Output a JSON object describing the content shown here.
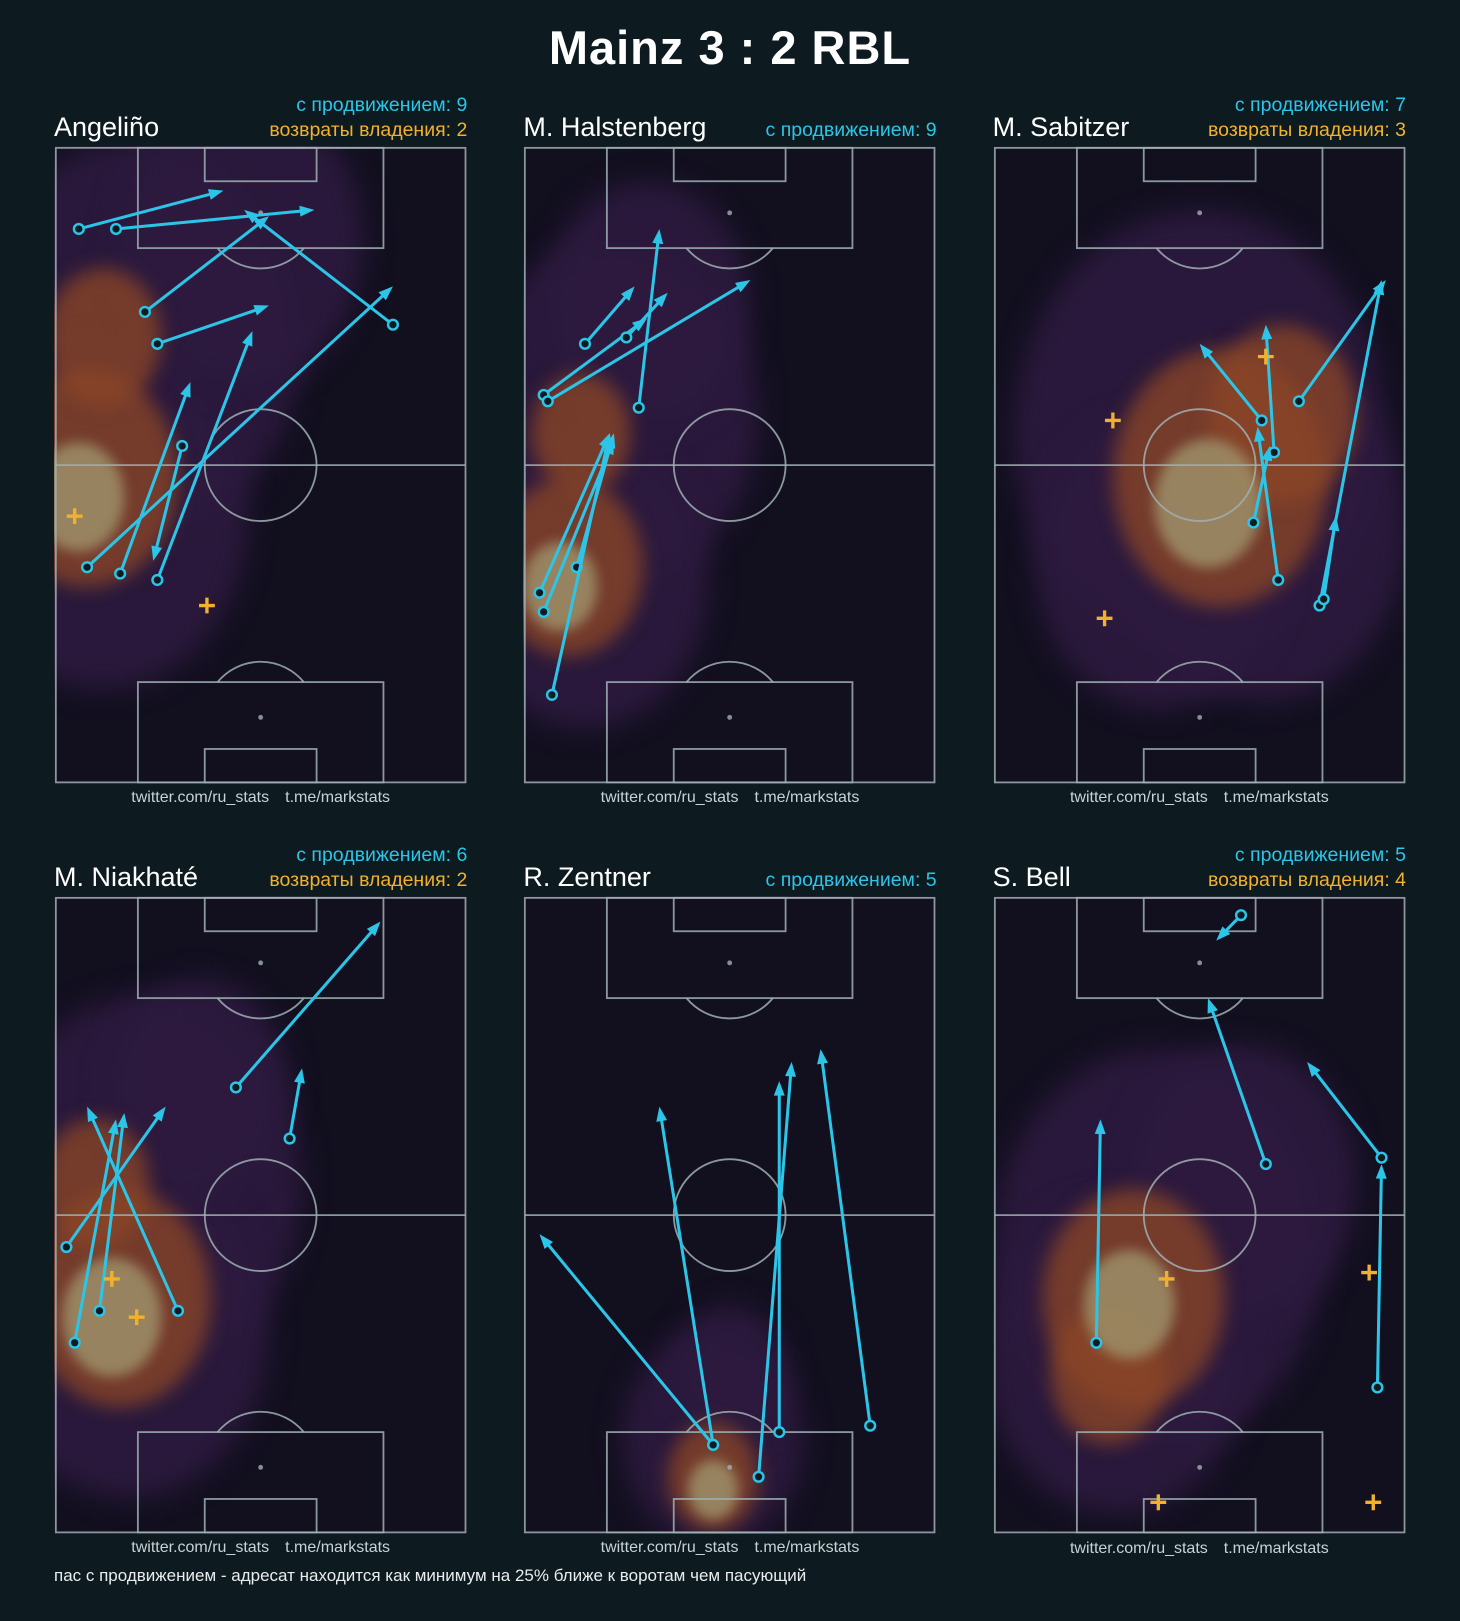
{
  "title": "Mainz 3 : 2 RBL",
  "caption": "пас с продвижением - адресат находится как минимум на 25% ближе к воротам чем пасующий",
  "watermark": {
    "twitter": "twitter.com/ru_stats",
    "telegram": "t.me/markstats"
  },
  "labels": {
    "progressive": "с продвижением",
    "recoveries": "возвраты владения"
  },
  "colors": {
    "background": "#0d1a20",
    "pitch_line": "#9fb0b4",
    "pass_arrow": "#2cc5e8",
    "recovery_marker": "#f2b12d",
    "progressive_text": "#2cc5e8",
    "recoveries_text": "#f2b12d",
    "heat_base": "#120f1f",
    "heat_low": "#2c1a3e",
    "heat_mid": "#8a4527",
    "heat_high": "#9c8d66"
  },
  "chart_data": {
    "type": "scatter",
    "subtype": "pass-map-with-heatmap",
    "pitch": {
      "orientation": "vertical",
      "coords": "percent of pitch, x left-to-right, y top-to-bottom"
    },
    "panels": [
      {
        "player": "Angeliño",
        "progressive": 9,
        "recoveries": 2,
        "passes": [
          [
            6,
            13,
            41,
            7
          ],
          [
            15,
            13,
            63,
            10
          ],
          [
            22,
            26,
            52,
            11
          ],
          [
            25,
            31,
            52,
            25
          ],
          [
            82,
            28,
            46,
            10
          ],
          [
            8,
            66,
            82,
            22
          ],
          [
            16,
            67,
            33,
            37
          ],
          [
            25,
            68,
            48,
            29
          ],
          [
            31,
            47,
            24,
            65
          ]
        ],
        "recovery_markers": [
          [
            5,
            58
          ],
          [
            37,
            72
          ]
        ],
        "heat": [
          {
            "x": 20,
            "y": 30,
            "r": 40,
            "level": "low"
          },
          {
            "x": 12,
            "y": 58,
            "r": 35,
            "level": "low"
          },
          {
            "x": 45,
            "y": 15,
            "r": 30,
            "level": "low"
          },
          {
            "x": 8,
            "y": 52,
            "r": 22,
            "level": "mid"
          },
          {
            "x": 12,
            "y": 30,
            "r": 14,
            "level": "mid"
          },
          {
            "x": 6,
            "y": 55,
            "r": 11,
            "level": "high"
          }
        ]
      },
      {
        "player": "M. Halstenberg",
        "progressive": 9,
        "recoveries": null,
        "passes": [
          [
            5,
            39,
            30,
            27
          ],
          [
            6,
            40,
            55,
            21
          ],
          [
            28,
            41,
            33,
            13
          ],
          [
            25,
            30,
            35,
            23
          ],
          [
            15,
            31,
            27,
            22
          ],
          [
            13,
            66,
            22,
            45
          ],
          [
            4,
            70,
            21,
            45
          ],
          [
            5,
            73,
            22,
            46
          ],
          [
            7,
            86,
            21,
            45
          ]
        ],
        "recovery_markers": [],
        "heat": [
          {
            "x": 22,
            "y": 42,
            "r": 35,
            "level": "low"
          },
          {
            "x": 15,
            "y": 68,
            "r": 30,
            "level": "low"
          },
          {
            "x": 30,
            "y": 25,
            "r": 25,
            "level": "low"
          },
          {
            "x": 11,
            "y": 66,
            "r": 18,
            "level": "mid"
          },
          {
            "x": 14,
            "y": 45,
            "r": 12,
            "level": "mid"
          },
          {
            "x": 9,
            "y": 69,
            "r": 9,
            "level": "high"
          }
        ]
      },
      {
        "player": "M. Sabitzer",
        "progressive": 7,
        "recoveries": 3,
        "passes": [
          [
            79,
            72,
            94,
            21
          ],
          [
            65,
            43,
            50,
            31
          ],
          [
            68,
            48,
            66,
            28
          ],
          [
            69,
            68,
            64,
            44
          ],
          [
            74,
            40,
            95,
            21
          ],
          [
            63,
            59,
            67,
            47
          ],
          [
            80,
            71,
            83,
            58
          ]
        ],
        "recovery_markers": [
          [
            29,
            43
          ],
          [
            66,
            33
          ],
          [
            27,
            74
          ]
        ],
        "heat": [
          {
            "x": 50,
            "y": 45,
            "r": 45,
            "level": "low"
          },
          {
            "x": 65,
            "y": 60,
            "r": 35,
            "level": "low"
          },
          {
            "x": 40,
            "y": 65,
            "r": 30,
            "level": "low"
          },
          {
            "x": 55,
            "y": 52,
            "r": 26,
            "level": "mid"
          },
          {
            "x": 70,
            "y": 42,
            "r": 18,
            "level": "mid"
          },
          {
            "x": 52,
            "y": 56,
            "r": 13,
            "level": "high"
          }
        ]
      },
      {
        "player": "M. Niakhaté",
        "progressive": 6,
        "recoveries": 2,
        "passes": [
          [
            44,
            30,
            79,
            4
          ],
          [
            57,
            38,
            60,
            27
          ],
          [
            3,
            55,
            27,
            33
          ],
          [
            11,
            65,
            17,
            34
          ],
          [
            5,
            70,
            15,
            35
          ],
          [
            30,
            65,
            8,
            33
          ]
        ],
        "recovery_markers": [
          [
            14,
            60
          ],
          [
            20,
            66
          ]
        ],
        "heat": [
          {
            "x": 22,
            "y": 45,
            "r": 38,
            "level": "low"
          },
          {
            "x": 18,
            "y": 68,
            "r": 34,
            "level": "low"
          },
          {
            "x": 35,
            "y": 30,
            "r": 22,
            "level": "low"
          },
          {
            "x": 16,
            "y": 63,
            "r": 22,
            "level": "mid"
          },
          {
            "x": 10,
            "y": 45,
            "r": 13,
            "level": "mid"
          },
          {
            "x": 14,
            "y": 66,
            "r": 12,
            "level": "high"
          }
        ]
      },
      {
        "player": "R. Zentner",
        "progressive": 5,
        "recoveries": null,
        "passes": [
          [
            46,
            86,
            33,
            33
          ],
          [
            46,
            86,
            4,
            53
          ],
          [
            57,
            91,
            65,
            26
          ],
          [
            62,
            84,
            62,
            29
          ],
          [
            84,
            83,
            72,
            24
          ]
        ],
        "recovery_markers": [],
        "heat": [
          {
            "x": 46,
            "y": 85,
            "r": 22,
            "level": "low"
          },
          {
            "x": 50,
            "y": 75,
            "r": 14,
            "level": "low"
          },
          {
            "x": 46,
            "y": 91,
            "r": 11,
            "level": "mid"
          },
          {
            "x": 46,
            "y": 93,
            "r": 6,
            "level": "high"
          }
        ]
      },
      {
        "player": "S. Bell",
        "progressive": 5,
        "recoveries": 4,
        "passes": [
          [
            66,
            42,
            52,
            16
          ],
          [
            25,
            70,
            26,
            35
          ],
          [
            93,
            77,
            94,
            42
          ],
          [
            94,
            41,
            76,
            26
          ],
          [
            60,
            3,
            54,
            7
          ]
        ],
        "recovery_markers": [
          [
            42,
            60
          ],
          [
            91,
            59
          ],
          [
            40,
            95
          ],
          [
            92,
            95
          ]
        ],
        "heat": [
          {
            "x": 40,
            "y": 55,
            "r": 40,
            "level": "low"
          },
          {
            "x": 30,
            "y": 72,
            "r": 32,
            "level": "low"
          },
          {
            "x": 60,
            "y": 45,
            "r": 28,
            "level": "low"
          },
          {
            "x": 34,
            "y": 63,
            "r": 22,
            "level": "mid"
          },
          {
            "x": 28,
            "y": 75,
            "r": 14,
            "level": "mid"
          },
          {
            "x": 33,
            "y": 64,
            "r": 11,
            "level": "high"
          }
        ]
      }
    ]
  }
}
